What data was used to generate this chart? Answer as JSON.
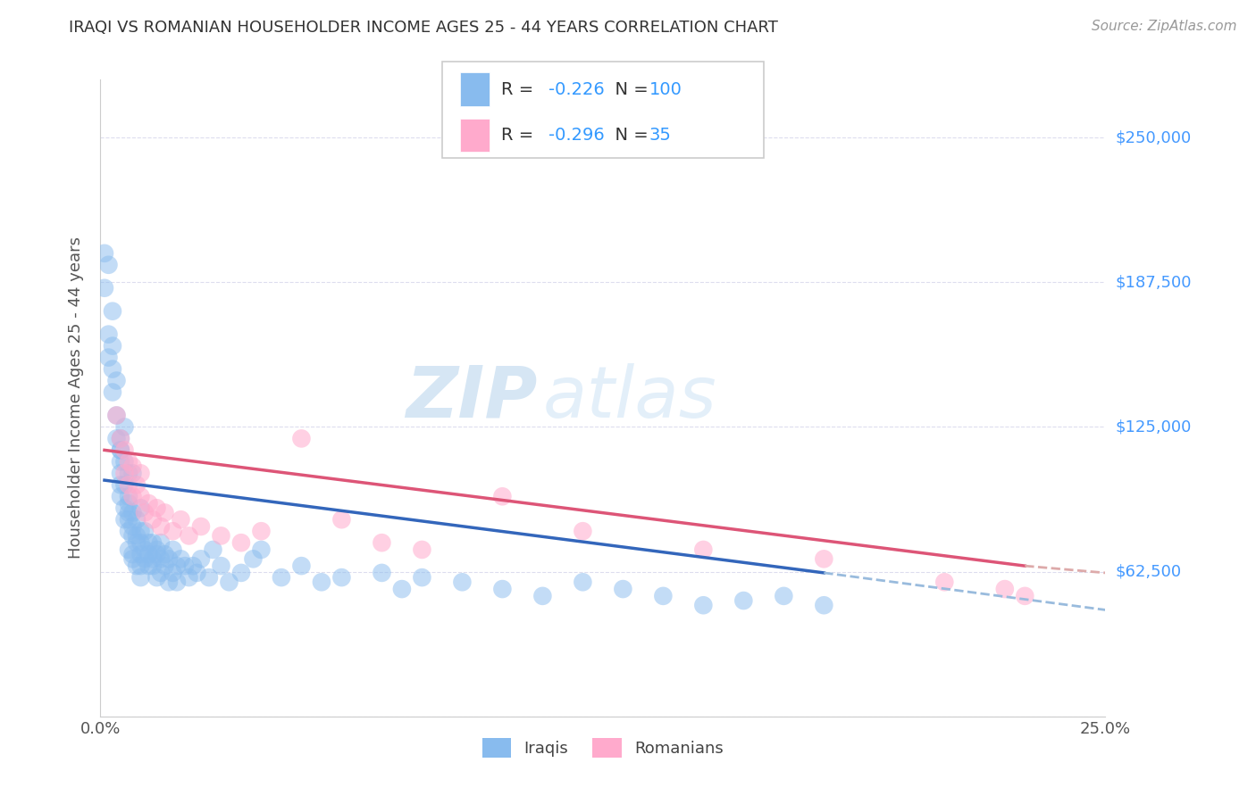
{
  "title": "IRAQI VS ROMANIAN HOUSEHOLDER INCOME AGES 25 - 44 YEARS CORRELATION CHART",
  "source": "Source: ZipAtlas.com",
  "ylabel": "Householder Income Ages 25 - 44 years",
  "xlim": [
    0.0,
    0.25
  ],
  "ylim": [
    0,
    275000
  ],
  "yticks": [
    0,
    62500,
    125000,
    187500,
    250000
  ],
  "ytick_labels": [
    "",
    "$62,500",
    "$125,000",
    "$187,500",
    "$250,000"
  ],
  "xticks": [
    0.0,
    0.05,
    0.1,
    0.15,
    0.2,
    0.25
  ],
  "xtick_labels": [
    "0.0%",
    "",
    "",
    "",
    "",
    "25.0%"
  ],
  "iraqi_R": -0.226,
  "iraqi_N": 100,
  "romanian_R": -0.296,
  "romanian_N": 35,
  "iraqi_color": "#88BBEE",
  "romanian_color": "#FFAACC",
  "iraqi_line_color": "#3366BB",
  "romanian_line_color": "#DD5577",
  "iraqi_dash_color": "#99BBDD",
  "romanian_dash_color": "#DDAAAA",
  "watermark_zip": "ZIP",
  "watermark_atlas": "atlas",
  "background_color": "#FFFFFF",
  "grid_color": "#DDDDEE",
  "iraqi_x": [
    0.002,
    0.003,
    0.003,
    0.004,
    0.004,
    0.004,
    0.005,
    0.005,
    0.005,
    0.005,
    0.005,
    0.005,
    0.006,
    0.006,
    0.006,
    0.006,
    0.007,
    0.007,
    0.007,
    0.007,
    0.007,
    0.007,
    0.007,
    0.008,
    0.008,
    0.008,
    0.008,
    0.008,
    0.009,
    0.009,
    0.009,
    0.009,
    0.01,
    0.01,
    0.01,
    0.01,
    0.01,
    0.011,
    0.011,
    0.011,
    0.012,
    0.012,
    0.012,
    0.013,
    0.013,
    0.013,
    0.014,
    0.014,
    0.014,
    0.015,
    0.015,
    0.015,
    0.016,
    0.016,
    0.017,
    0.017,
    0.018,
    0.018,
    0.019,
    0.019,
    0.02,
    0.021,
    0.022,
    0.023,
    0.024,
    0.025,
    0.027,
    0.028,
    0.03,
    0.032,
    0.035,
    0.038,
    0.04,
    0.045,
    0.05,
    0.055,
    0.06,
    0.07,
    0.075,
    0.08,
    0.09,
    0.1,
    0.11,
    0.12,
    0.13,
    0.14,
    0.15,
    0.16,
    0.17,
    0.18,
    0.001,
    0.002,
    0.003,
    0.001,
    0.002,
    0.006,
    0.008,
    0.01,
    0.003,
    0.005
  ],
  "iraqi_y": [
    195000,
    175000,
    160000,
    145000,
    130000,
    120000,
    115000,
    110000,
    105000,
    100000,
    95000,
    115000,
    90000,
    100000,
    110000,
    85000,
    95000,
    105000,
    88000,
    80000,
    92000,
    72000,
    85000,
    78000,
    88000,
    70000,
    82000,
    68000,
    75000,
    85000,
    65000,
    78000,
    70000,
    80000,
    65000,
    75000,
    60000,
    72000,
    68000,
    80000,
    70000,
    65000,
    75000,
    68000,
    75000,
    65000,
    70000,
    60000,
    72000,
    68000,
    75000,
    62000,
    70000,
    65000,
    68000,
    58000,
    62000,
    72000,
    65000,
    58000,
    68000,
    65000,
    60000,
    65000,
    62000,
    68000,
    60000,
    72000,
    65000,
    58000,
    62000,
    68000,
    72000,
    60000,
    65000,
    58000,
    60000,
    62000,
    55000,
    60000,
    58000,
    55000,
    52000,
    58000,
    55000,
    52000,
    48000,
    50000,
    52000,
    48000,
    200000,
    165000,
    150000,
    185000,
    155000,
    125000,
    105000,
    90000,
    140000,
    120000
  ],
  "romanian_x": [
    0.004,
    0.005,
    0.006,
    0.006,
    0.007,
    0.007,
    0.008,
    0.008,
    0.009,
    0.01,
    0.01,
    0.011,
    0.012,
    0.013,
    0.014,
    0.015,
    0.016,
    0.018,
    0.02,
    0.022,
    0.025,
    0.03,
    0.035,
    0.04,
    0.05,
    0.06,
    0.07,
    0.08,
    0.1,
    0.12,
    0.15,
    0.18,
    0.21,
    0.225,
    0.23
  ],
  "romanian_y": [
    130000,
    120000,
    115000,
    105000,
    110000,
    100000,
    95000,
    108000,
    100000,
    95000,
    105000,
    88000,
    92000,
    85000,
    90000,
    82000,
    88000,
    80000,
    85000,
    78000,
    82000,
    78000,
    75000,
    80000,
    120000,
    85000,
    75000,
    72000,
    95000,
    80000,
    72000,
    68000,
    58000,
    55000,
    52000
  ],
  "iraqi_line_xstart": 0.001,
  "iraqi_line_xend": 0.18,
  "iraqi_line_ystart": 102000,
  "iraqi_line_yend": 62000,
  "romanian_line_xstart": 0.001,
  "romanian_line_xend": 0.23,
  "romanian_line_ystart": 115000,
  "romanian_line_yend": 65000,
  "iraqi_dash_xstart": 0.18,
  "iraqi_dash_xend": 0.25,
  "iraqi_dash_ystart": 62000,
  "iraqi_dash_yend": 46000,
  "romanian_dash_xstart": 0.23,
  "romanian_dash_xend": 0.25,
  "romanian_dash_ystart": 65000,
  "romanian_dash_yend": 62000,
  "legend_R1": "R = -0.226",
  "legend_N1": "N = 100",
  "legend_R2": "R = -0.296",
  "legend_N2": "N =  35"
}
